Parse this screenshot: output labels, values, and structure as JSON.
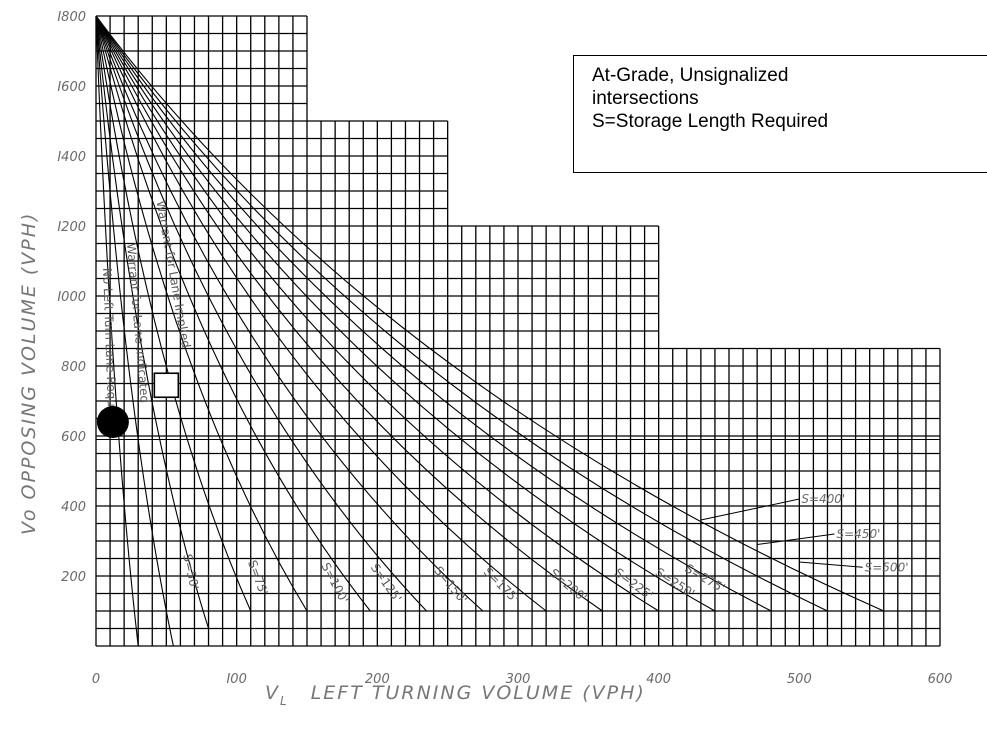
{
  "chart_data": {
    "type": "line",
    "xlabel": "V_L   LEFT TURNING VOLUME (VPH)",
    "xlabel_main": "V",
    "xlabel_sub": "L",
    "xlabel_rest": "LEFT TURNING VOLUME (VPH)",
    "ylabel": "Vo  OPPOSING VOLUME  (VPH)",
    "xlim": [
      0,
      600
    ],
    "ylim": [
      0,
      1800
    ],
    "x_ticks": [
      {
        "value": 0,
        "label": "0"
      },
      {
        "value": 100,
        "label": "I00"
      },
      {
        "value": 200,
        "label": "200"
      },
      {
        "value": 300,
        "label": "300"
      },
      {
        "value": 400,
        "label": "400"
      },
      {
        "value": 500,
        "label": "500"
      },
      {
        "value": 600,
        "label": "600"
      }
    ],
    "y_ticks": [
      {
        "value": 200,
        "label": "200"
      },
      {
        "value": 400,
        "label": "400"
      },
      {
        "value": 600,
        "label": "600"
      },
      {
        "value": 800,
        "label": "800"
      },
      {
        "value": 1000,
        "label": "I000"
      },
      {
        "value": 1200,
        "label": "I200"
      },
      {
        "value": 1400,
        "label": "I400"
      },
      {
        "value": 1600,
        "label": "I600"
      },
      {
        "value": 1800,
        "label": "I800"
      }
    ],
    "grid": true,
    "grid_step": {
      "x": 10,
      "y": 50
    },
    "grid_envelope": [
      {
        "x_from": 0,
        "x_to": 150,
        "y_max": 1800
      },
      {
        "x_from": 150,
        "x_to": 250,
        "y_max": 1500
      },
      {
        "x_from": 250,
        "x_to": 400,
        "y_max": 1200
      },
      {
        "x_from": 400,
        "x_to": 600,
        "y_max": 850
      }
    ],
    "curves_origin": {
      "x": 0,
      "y": 1800
    },
    "curve_endpoints": [
      {
        "x": 30,
        "y": 0
      },
      {
        "x": 55,
        "y": 0
      },
      {
        "x": 80,
        "y": 50
      },
      {
        "x": 110,
        "y": 100
      },
      {
        "x": 150,
        "y": 100
      },
      {
        "x": 195,
        "y": 100
      },
      {
        "x": 235,
        "y": 100
      },
      {
        "x": 275,
        "y": 100
      },
      {
        "x": 320,
        "y": 100
      },
      {
        "x": 360,
        "y": 100
      },
      {
        "x": 400,
        "y": 100
      },
      {
        "x": 440,
        "y": 100
      },
      {
        "x": 480,
        "y": 100
      },
      {
        "x": 520,
        "y": 100
      },
      {
        "x": 560,
        "y": 100
      }
    ],
    "curve_labels": [
      {
        "text": "No Left Turn Lane Required",
        "x": 5,
        "y": 1080,
        "angle": 88
      },
      {
        "text": "Warrant for Lane Indicated",
        "x": 22,
        "y": 1150,
        "angle": 85
      },
      {
        "text": "Warrant for Lane Implied",
        "x": 43,
        "y": 1270,
        "angle": 80
      },
      {
        "text": "S=50'",
        "x": 62,
        "y": 260,
        "angle": 78
      },
      {
        "text": "S=75'",
        "x": 108,
        "y": 240,
        "angle": 70
      },
      {
        "text": "S=100'",
        "x": 160,
        "y": 230,
        "angle": 62
      },
      {
        "text": "S=125'",
        "x": 195,
        "y": 225,
        "angle": 55
      },
      {
        "text": "S=150'",
        "x": 240,
        "y": 215,
        "angle": 50
      },
      {
        "text": "S=175'",
        "x": 275,
        "y": 210,
        "angle": 45
      },
      {
        "text": "S=200'",
        "x": 322,
        "y": 205,
        "angle": 40
      },
      {
        "text": "S=225'",
        "x": 368,
        "y": 205,
        "angle": 36
      },
      {
        "text": "S=250'",
        "x": 397,
        "y": 205,
        "angle": 33
      },
      {
        "text": "S=275'",
        "x": 418,
        "y": 215,
        "angle": 30
      }
    ],
    "leader_labels": [
      {
        "text": "S=400'",
        "x_label": 500,
        "y_label": 420,
        "x_end": 430,
        "y_end": 360
      },
      {
        "text": "S=450'",
        "x_label": 525,
        "y_label": 320,
        "x_end": 470,
        "y_end": 290
      },
      {
        "text": "S=500'",
        "x_label": 545,
        "y_label": 225,
        "x_end": 500,
        "y_end": 240
      }
    ],
    "reference_line": {
      "y": 590
    },
    "points": [
      {
        "marker": "filled-circle",
        "x": 12,
        "y": 640,
        "color": "#000000"
      },
      {
        "marker": "open-square",
        "x": 50,
        "y": 745,
        "color": "#000000"
      }
    ],
    "annotation": {
      "lines": [
        "At-Grade, Unsignalized",
        "intersections",
        "S=Storage Length Required"
      ]
    }
  }
}
